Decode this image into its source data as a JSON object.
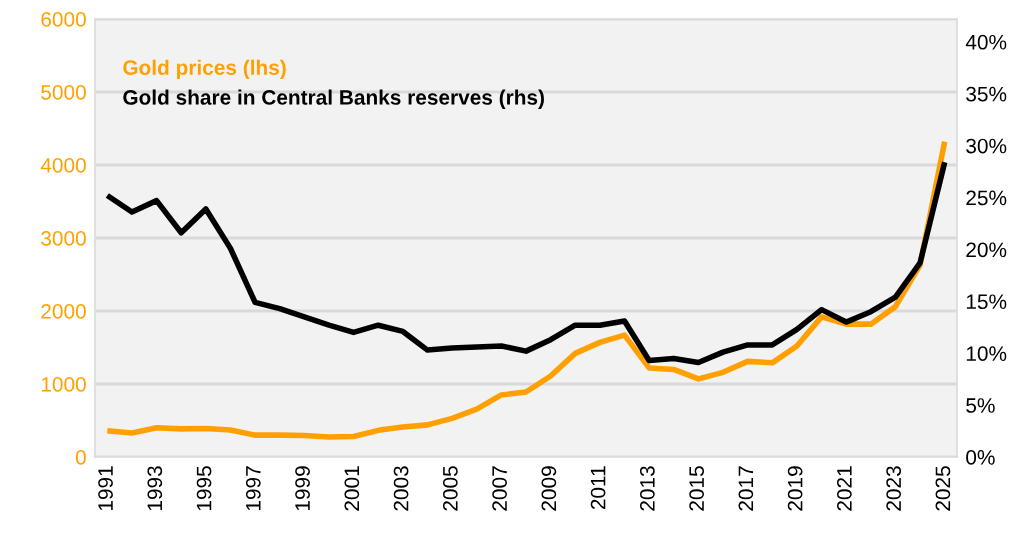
{
  "chart_data": {
    "type": "line",
    "x": [
      1991,
      1992,
      1993,
      1994,
      1995,
      1996,
      1997,
      1998,
      1999,
      2000,
      2001,
      2002,
      2003,
      2004,
      2005,
      2006,
      2007,
      2008,
      2009,
      2010,
      2011,
      2012,
      2013,
      2014,
      2015,
      2016,
      2017,
      2018,
      2019,
      2020,
      2021,
      2022,
      2023,
      2024,
      2025
    ],
    "series": [
      {
        "name": "Gold prices (lhs)",
        "color": "#ffa000",
        "axis": "y",
        "values": [
          360,
          330,
          400,
          385,
          390,
          370,
          300,
          300,
          295,
          275,
          280,
          365,
          410,
          440,
          530,
          655,
          850,
          890,
          1110,
          1420,
          1570,
          1670,
          1220,
          1200,
          1070,
          1160,
          1310,
          1290,
          1520,
          1920,
          1820,
          1820,
          2060,
          2630,
          4320
        ]
      },
      {
        "name": "Gold share in Central Banks reserves (rhs)",
        "color": "#000000",
        "axis": "y2",
        "values": [
          25.2,
          23.6,
          24.7,
          21.6,
          23.9,
          20.1,
          14.9,
          14.3,
          13.5,
          12.7,
          12.0,
          12.7,
          12.1,
          10.3,
          10.5,
          10.6,
          10.7,
          10.2,
          11.3,
          12.7,
          12.7,
          13.1,
          9.3,
          9.5,
          9.1,
          10.1,
          10.8,
          10.8,
          12.3,
          14.2,
          13.0,
          14.0,
          15.4,
          18.7,
          28.4
        ]
      }
    ],
    "xlim": [
      1990.5,
      2025.5
    ],
    "xticks": [
      1991,
      1993,
      1995,
      1997,
      1999,
      2001,
      2003,
      2005,
      2007,
      2009,
      2011,
      2013,
      2015,
      2017,
      2019,
      2021,
      2023,
      2025
    ],
    "ylim": [
      0,
      6000
    ],
    "yticks": [
      0,
      1000,
      2000,
      3000,
      4000,
      5000,
      6000
    ],
    "y2lim": [
      0,
      42.2
    ],
    "y2ticks": [
      {
        "value": 0,
        "label": "0%"
      },
      {
        "value": 5,
        "label": "5%"
      },
      {
        "value": 10,
        "label": "10%"
      },
      {
        "value": 15,
        "label": "15%"
      },
      {
        "value": 20,
        "label": "20%"
      },
      {
        "value": 25,
        "label": "25%"
      },
      {
        "value": 30,
        "label": "30%"
      },
      {
        "value": 35,
        "label": "35%"
      },
      {
        "value": 40,
        "label": "40%"
      }
    ],
    "grid": "y",
    "legend": "top left",
    "marker": "none",
    "line_style": "solid"
  }
}
